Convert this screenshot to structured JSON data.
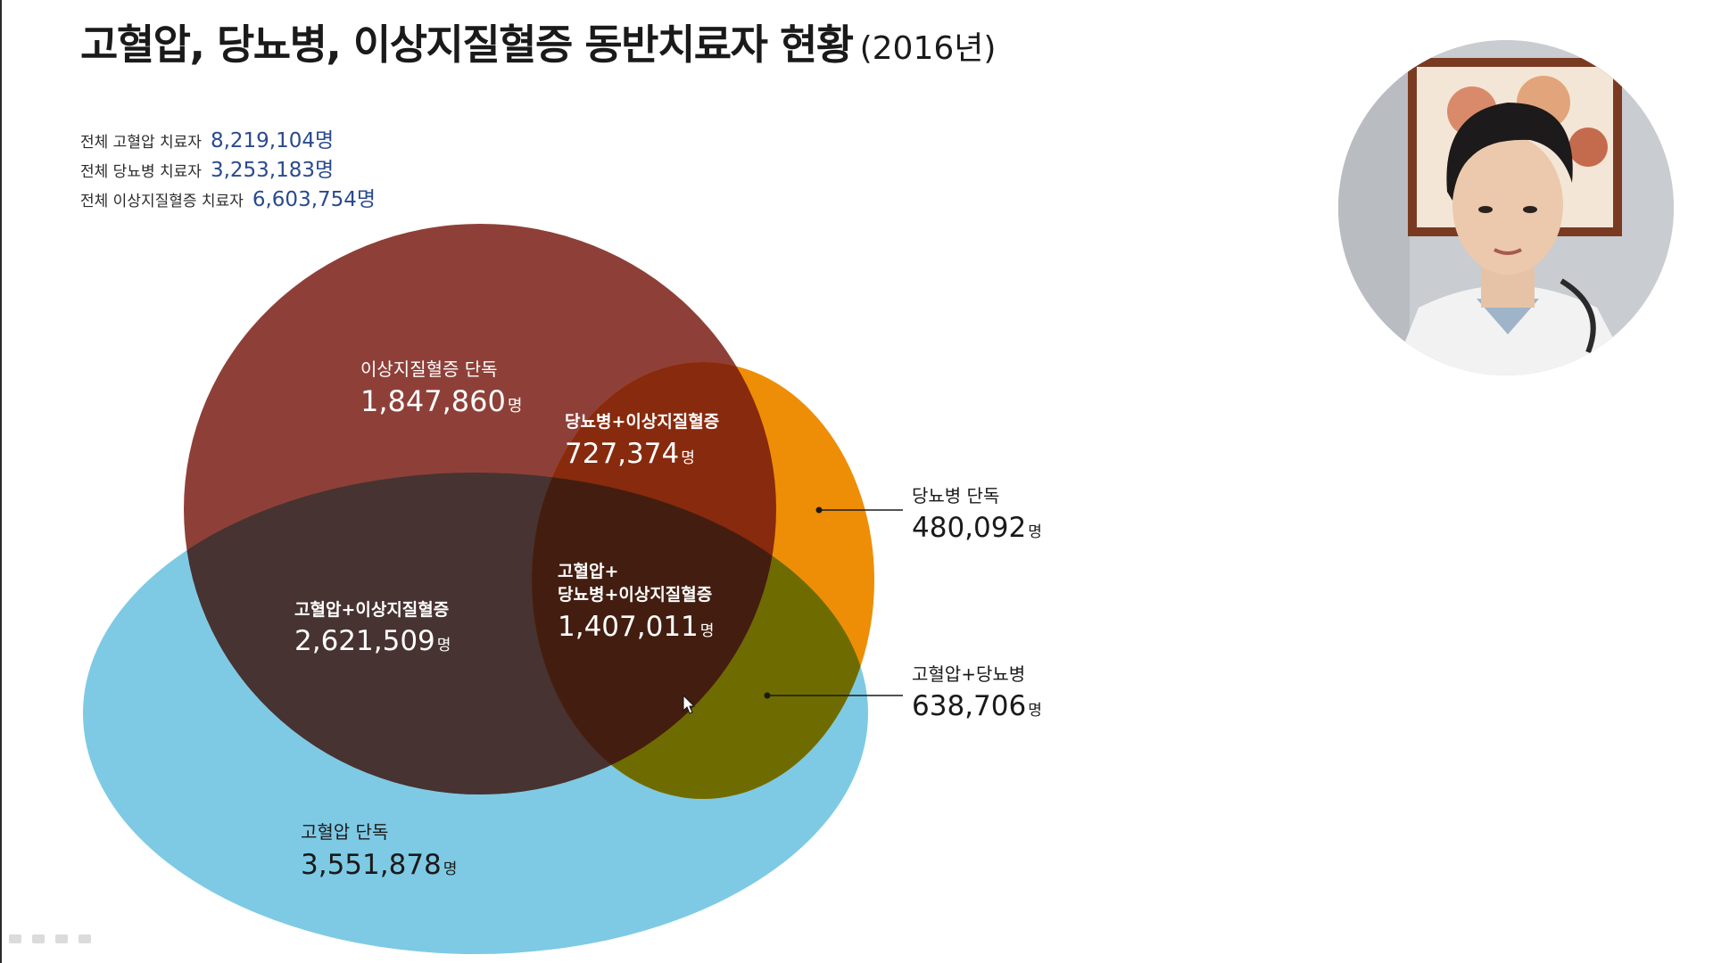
{
  "title": {
    "main": "고혈압, 당뇨병, 이상지질혈증 동반치료자 현황",
    "year": "(2016년)"
  },
  "totals": [
    {
      "label": "전체 고혈압 치료자",
      "value": "8,219,104명"
    },
    {
      "label": "전체 당뇨병 치료자",
      "value": "3,253,183명"
    },
    {
      "label": "전체 이상지질혈증 치료자",
      "value": "6,603,754명"
    }
  ],
  "venn": {
    "colors": {
      "hypertension": "#7ecae4",
      "dyslipidemia": "#8e4038",
      "diabetes": "#ee8e06",
      "hyp_dys": "#473331",
      "dia_dys": "#882a0d",
      "hyp_dia": "#6e6c00",
      "all_three": "#431e10"
    },
    "regions": {
      "dys_only": {
        "label": "이상지질혈증 단독",
        "value": "1,847,860",
        "unit": "명"
      },
      "dia_dys": {
        "label": "당뇨병+이상지질혈증",
        "value": "727,374",
        "unit": "명"
      },
      "dia_only": {
        "label": "당뇨병 단독",
        "value": "480,092",
        "unit": "명"
      },
      "hyp_dys": {
        "label": "고혈압+이상지질혈증",
        "value": "2,621,509",
        "unit": "명"
      },
      "all_three": {
        "label_line1": "고혈압+",
        "label_line2": "당뇨병+이상지질혈증",
        "value": "1,407,011",
        "unit": "명"
      },
      "hyp_dia": {
        "label": "고혈압+당뇨병",
        "value": "638,706",
        "unit": "명"
      },
      "hyp_only": {
        "label": "고혈압 단독",
        "value": "3,551,878",
        "unit": "명"
      }
    }
  },
  "webcam": {
    "description_icon": "presenter-video-icon"
  }
}
